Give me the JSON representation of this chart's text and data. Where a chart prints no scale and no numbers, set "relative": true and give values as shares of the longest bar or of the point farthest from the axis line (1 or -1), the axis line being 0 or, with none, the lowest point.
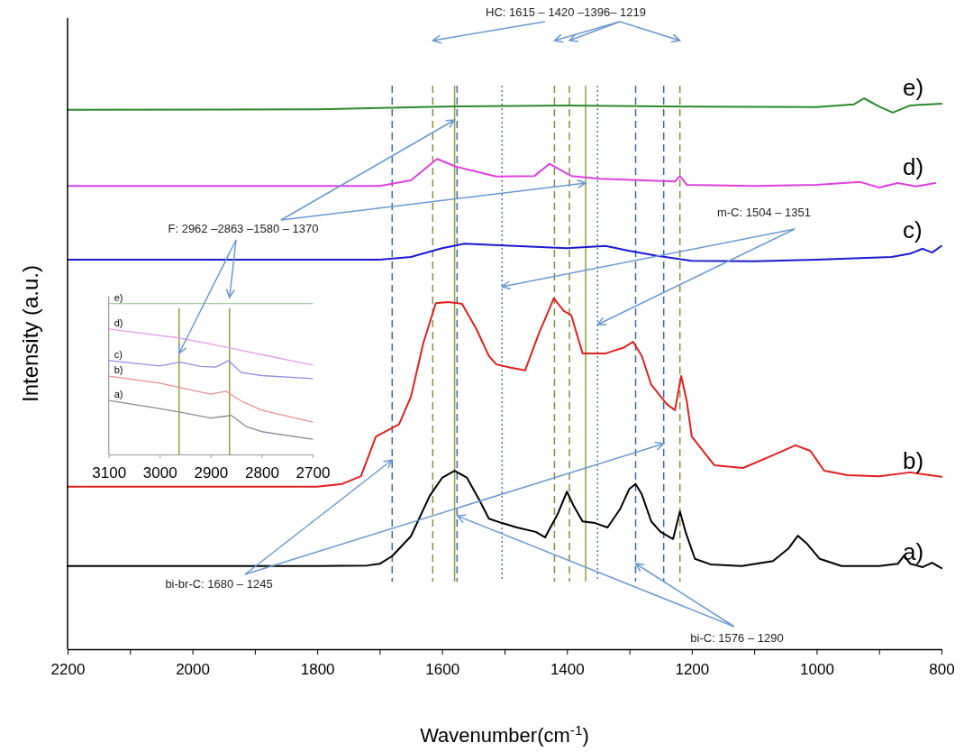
{
  "chart_data": [
    {
      "type": "line",
      "relative": true,
      "xlabel": "Wavenumber(cm$^{-1}$)",
      "ylabel": "Intensity (a.u.)",
      "xlim": [
        2200,
        800
      ],
      "xticks": [
        2200,
        {
          "value": 2100,
          "label": null
        },
        2000,
        {
          "value": 1900,
          "label": null
        },
        1800,
        {
          "value": 1700,
          "label": null
        },
        1600,
        {
          "value": 1500,
          "label": null
        },
        1400,
        {
          "value": 1300,
          "label": null
        },
        1200,
        {
          "value": 1100,
          "label": null
        },
        1000,
        {
          "value": 900,
          "label": null
        },
        800
      ],
      "grid": false,
      "marker": "none",
      "line_style": "solid",
      "series": [
        {
          "name": "a)",
          "color": "#000000",
          "x": [
            2200,
            1800,
            1720,
            1700,
            1680,
            1650,
            1620,
            1600,
            1580,
            1560,
            1540,
            1525,
            1504,
            1480,
            1450,
            1435,
            1415,
            1400,
            1390,
            1375,
            1355,
            1335,
            1315,
            1300,
            1290,
            1280,
            1265,
            1250,
            1230,
            1219,
            1210,
            1195,
            1170,
            1120,
            1070,
            1045,
            1030,
            1015,
            995,
            960,
            900,
            870,
            860,
            850,
            830,
            815,
            800
          ],
          "values": [
            0.151,
            0.151,
            0.152,
            0.155,
            0.169,
            0.205,
            0.278,
            0.311,
            0.324,
            0.311,
            0.27,
            0.237,
            0.229,
            0.221,
            0.213,
            0.203,
            0.245,
            0.286,
            0.262,
            0.232,
            0.229,
            0.221,
            0.254,
            0.291,
            0.3,
            0.281,
            0.232,
            0.213,
            0.2,
            0.25,
            0.213,
            0.164,
            0.154,
            0.151,
            0.16,
            0.183,
            0.206,
            0.191,
            0.164,
            0.151,
            0.151,
            0.155,
            0.17,
            0.155,
            0.149,
            0.157,
            0.147
          ]
        },
        {
          "name": "b)",
          "color": "#e02020",
          "x": [
            2200,
            1800,
            1760,
            1730,
            1706,
            1669,
            1650,
            1630,
            1610,
            1590,
            1568,
            1545,
            1525,
            1513,
            1490,
            1467,
            1445,
            1421,
            1405,
            1393,
            1375,
            1338,
            1310,
            1294,
            1280,
            1265,
            1240,
            1227,
            1217,
            1208,
            1200,
            1164,
            1118,
            1070,
            1034,
            1010,
            988,
            950,
            900,
            850,
            800
          ],
          "values": [
            0.295,
            0.295,
            0.3,
            0.314,
            0.386,
            0.408,
            0.458,
            0.556,
            0.628,
            0.63,
            0.627,
            0.581,
            0.532,
            0.517,
            0.511,
            0.506,
            0.573,
            0.637,
            0.614,
            0.606,
            0.537,
            0.537,
            0.547,
            0.558,
            0.532,
            0.48,
            0.445,
            0.434,
            0.496,
            0.45,
            0.386,
            0.334,
            0.329,
            0.352,
            0.37,
            0.36,
            0.324,
            0.316,
            0.314,
            0.321,
            0.313
          ]
        },
        {
          "name": "c)",
          "color": "#1a1ad0",
          "x": [
            2200,
            1700,
            1650,
            1600,
            1564,
            1500,
            1400,
            1338,
            1300,
            1255,
            1200,
            1100,
            1000,
            930,
            880,
            850,
            830,
            815,
            800
          ],
          "values": [
            0.707,
            0.707,
            0.712,
            0.728,
            0.736,
            0.733,
            0.728,
            0.732,
            0.723,
            0.714,
            0.705,
            0.704,
            0.707,
            0.71,
            0.712,
            0.718,
            0.727,
            0.72,
            0.732
          ]
        },
        {
          "name": "d)",
          "color": "#e040e0",
          "x": [
            2200,
            1700,
            1650,
            1608,
            1578,
            1513,
            1452,
            1428,
            1393,
            1347,
            1227,
            1219,
            1208,
            1100,
            1000,
            930,
            900,
            870,
            840,
            810
          ],
          "values": [
            0.841,
            0.841,
            0.851,
            0.89,
            0.876,
            0.858,
            0.859,
            0.881,
            0.859,
            0.854,
            0.849,
            0.859,
            0.843,
            0.841,
            0.843,
            0.848,
            0.838,
            0.846,
            0.84,
            0.846
          ]
        },
        {
          "name": "e)",
          "color": "#2a8a2a",
          "x": [
            2200,
            1800,
            1600,
            1400,
            1200,
            1000,
            940,
            924,
            900,
            878,
            850,
            820,
            800
          ],
          "values": [
            0.979,
            0.98,
            0.985,
            0.987,
            0.985,
            0.984,
            0.989,
            1.0,
            0.985,
            0.974,
            0.987,
            0.989,
            0.99
          ]
        }
      ],
      "ref_lines": [
        {
          "axis": "x",
          "value": 1680,
          "color": "#3a6aa8",
          "line_style": "dashed"
        },
        {
          "axis": "x",
          "value": 1245,
          "color": "#3a6aa8",
          "line_style": "dashed"
        },
        {
          "axis": "x",
          "value": 1576,
          "color": "#3a6aa8",
          "line_style": "dashed"
        },
        {
          "axis": "x",
          "value": 1290,
          "color": "#3a6aa8",
          "line_style": "dashed"
        },
        {
          "axis": "x",
          "value": 1504,
          "color": "#4a7ac0",
          "line_style": "dotted"
        },
        {
          "axis": "x",
          "value": 1351,
          "color": "#4a7ac0",
          "line_style": "dotted"
        },
        {
          "axis": "x",
          "value": 1615,
          "color": "#8c8c3c",
          "line_style": "dashed"
        },
        {
          "axis": "x",
          "value": 1420,
          "color": "#8c8c3c",
          "line_style": "dashed"
        },
        {
          "axis": "x",
          "value": 1396,
          "color": "#8c8c3c",
          "line_style": "dashed"
        },
        {
          "axis": "x",
          "value": 1219,
          "color": "#8c8c3c",
          "line_style": "dashed"
        },
        {
          "axis": "x",
          "value": 1580,
          "color": "#8fa03a",
          "line_style": "solid"
        },
        {
          "axis": "x",
          "value": 1370,
          "color": "#8fa03a",
          "line_style": "solid"
        }
      ],
      "annotations": [
        "HC: 1615 – 1420 –1396– 1219",
        "F: 2962 –2863 –1580 – 1370",
        "m-C: 1504 – 1351",
        "bi-br-C: 1680 – 1245",
        "bi-C: 1576 – 1290"
      ]
    },
    {
      "type": "line",
      "relative": true,
      "xlim": [
        3100,
        2700
      ],
      "xticks": [
        3100,
        3000,
        2900,
        2800,
        2700
      ],
      "grid": false,
      "marker": "none",
      "line_style": "solid",
      "series": [
        {
          "name": "a)",
          "color": "#8a8a9a",
          "x": [
            3100,
            3000,
            2960,
            2900,
            2870,
            2860,
            2830,
            2800,
            2700
          ],
          "values": [
            0.358,
            0.304,
            0.28,
            0.241,
            0.254,
            0.26,
            0.185,
            0.151,
            0.101
          ]
        },
        {
          "name": "b)",
          "color": "#e89090",
          "x": [
            3100,
            3000,
            2960,
            2900,
            2870,
            2840,
            2800,
            2700
          ],
          "values": [
            0.519,
            0.473,
            0.443,
            0.4,
            0.419,
            0.354,
            0.294,
            0.215
          ]
        },
        {
          "name": "c)",
          "color": "#9090e0",
          "x": [
            3100,
            3000,
            2960,
            2920,
            2890,
            2865,
            2840,
            2800,
            2700
          ],
          "values": [
            0.622,
            0.586,
            0.612,
            0.583,
            0.579,
            0.622,
            0.543,
            0.523,
            0.503
          ]
        },
        {
          "name": "d)",
          "color": "#e8a0e8",
          "x": [
            3100,
            2960,
            2870,
            2800,
            2700
          ],
          "values": [
            0.831,
            0.771,
            0.712,
            0.662,
            0.592
          ]
        },
        {
          "name": "e)",
          "color": "#a0d0a0",
          "x": [
            3100,
            2700
          ],
          "values": [
            1.0,
            1.0
          ]
        }
      ],
      "ref_lines": [
        {
          "axis": "x",
          "value": 2962,
          "color": "#8fa03a",
          "line_style": "solid"
        },
        {
          "axis": "x",
          "value": 2863,
          "color": "#8fa03a",
          "line_style": "solid"
        }
      ]
    }
  ]
}
